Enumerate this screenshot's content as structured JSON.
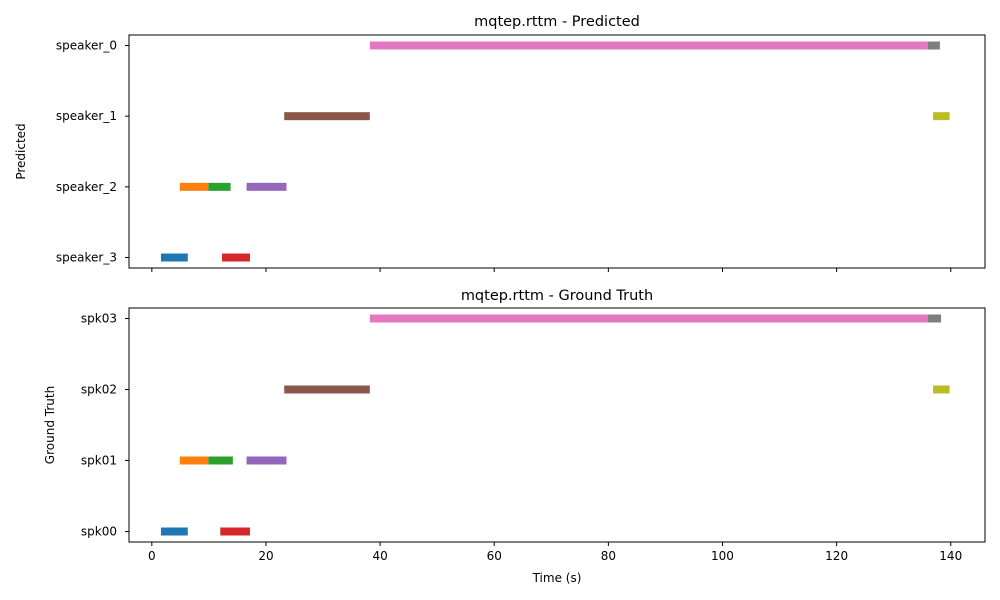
{
  "chart_data": [
    {
      "type": "timeline",
      "title": "mqtep.rttm - Predicted",
      "ylabel": "Predicted",
      "xlabel": "",
      "xlim": [
        -4,
        146
      ],
      "x_ticks": [
        0,
        20,
        40,
        60,
        80,
        100,
        120,
        140
      ],
      "show_x_tick_labels": false,
      "grid": false,
      "rows": [
        "speaker_0",
        "speaker_1",
        "speaker_2",
        "speaker_3"
      ],
      "segments": [
        {
          "row": "speaker_3",
          "start": 1.6,
          "end": 6.3,
          "color": "#1f77b4"
        },
        {
          "row": "speaker_2",
          "start": 4.9,
          "end": 9.9,
          "color": "#ff7f0e"
        },
        {
          "row": "speaker_2",
          "start": 9.9,
          "end": 13.8,
          "color": "#2ca02c"
        },
        {
          "row": "speaker_3",
          "start": 12.3,
          "end": 17.2,
          "color": "#d62728"
        },
        {
          "row": "speaker_2",
          "start": 16.6,
          "end": 23.6,
          "color": "#9467bd"
        },
        {
          "row": "speaker_1",
          "start": 23.2,
          "end": 38.2,
          "color": "#8c564b"
        },
        {
          "row": "speaker_0",
          "start": 38.2,
          "end": 136.0,
          "color": "#e377c2"
        },
        {
          "row": "speaker_0",
          "start": 136.0,
          "end": 138.1,
          "color": "#7f7f7f"
        },
        {
          "row": "speaker_1",
          "start": 136.9,
          "end": 139.8,
          "color": "#bcbd22"
        }
      ]
    },
    {
      "type": "timeline",
      "title": "mqtep.rttm - Ground Truth",
      "ylabel": "Ground Truth",
      "xlabel": "Time (s)",
      "xlim": [
        -4,
        146
      ],
      "x_ticks": [
        0,
        20,
        40,
        60,
        80,
        100,
        120,
        140
      ],
      "show_x_tick_labels": true,
      "grid": false,
      "rows": [
        "spk03",
        "spk02",
        "spk01",
        "spk00"
      ],
      "segments": [
        {
          "row": "spk00",
          "start": 1.6,
          "end": 6.3,
          "color": "#1f77b4"
        },
        {
          "row": "spk01",
          "start": 4.9,
          "end": 9.9,
          "color": "#ff7f0e"
        },
        {
          "row": "spk01",
          "start": 9.9,
          "end": 14.2,
          "color": "#2ca02c"
        },
        {
          "row": "spk00",
          "start": 12.0,
          "end": 17.2,
          "color": "#d62728"
        },
        {
          "row": "spk01",
          "start": 16.6,
          "end": 23.6,
          "color": "#9467bd"
        },
        {
          "row": "spk02",
          "start": 23.2,
          "end": 38.2,
          "color": "#8c564b"
        },
        {
          "row": "spk03",
          "start": 38.2,
          "end": 136.0,
          "color": "#e377c2"
        },
        {
          "row": "spk03",
          "start": 136.0,
          "end": 138.3,
          "color": "#7f7f7f"
        },
        {
          "row": "spk02",
          "start": 136.9,
          "end": 139.8,
          "color": "#bcbd22"
        }
      ]
    }
  ]
}
